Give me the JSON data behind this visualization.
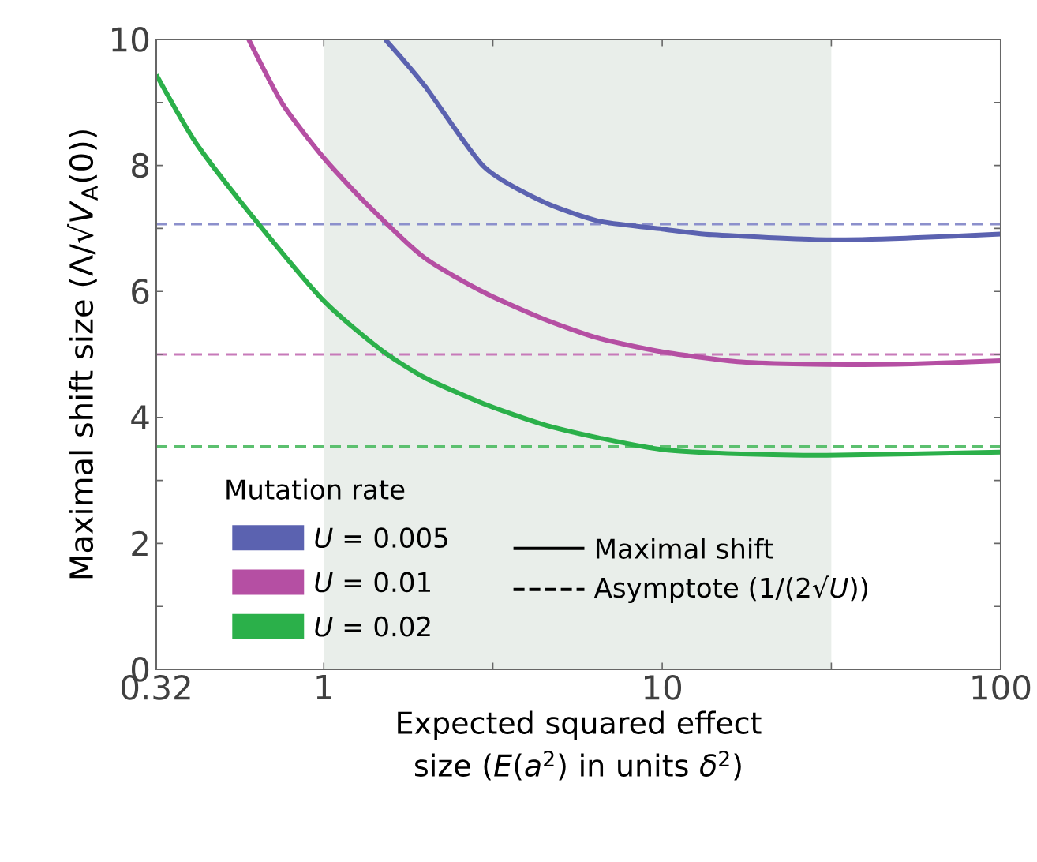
{
  "chart_data": {
    "type": "line",
    "xlabel": "Expected squared effect size (*E*(*a*$^{2}$) in units *δ*$^{2}$)",
    "ylabel": "Maximal shift size (Λ/√*V*$_{A}$(0))",
    "legend_title": "Mutation rate",
    "log": "x",
    "xlim": [
      0.32,
      100
    ],
    "ylim": [
      0,
      10
    ],
    "xticks": [
      0.32,
      1,
      {
        "value": 3.16,
        "label": null
      },
      10,
      {
        "value": 31.6,
        "label": null
      },
      100
    ],
    "yticks": [
      0,
      {
        "value": 1,
        "label": null
      },
      2,
      {
        "value": 3,
        "label": null
      },
      4,
      {
        "value": 5,
        "label": null
      },
      6,
      {
        "value": 7,
        "label": null
      },
      8,
      {
        "value": 9,
        "label": null
      },
      10
    ],
    "series": [
      {
        "name": "*U* = 0.005",
        "color": "#5b62b0",
        "x": [
          1.52,
          1.99,
          2.96,
          4.38,
          6.45,
          10,
          14.1,
          30.6,
          54.9,
          100
        ],
        "values": [
          10,
          9.26,
          7.99,
          7.44,
          7.12,
          6.99,
          6.9,
          6.82,
          6.85,
          6.91
        ]
      },
      {
        "name": "*U* = 0.01",
        "color": "#b54fa3",
        "x": [
          0.6,
          0.755,
          1,
          1.36,
          1.99,
          2.96,
          4.38,
          6.45,
          10,
          17.1,
          30.6,
          54.9,
          100
        ],
        "values": [
          10,
          8.98,
          8.12,
          7.35,
          6.53,
          5.99,
          5.58,
          5.26,
          5.04,
          4.88,
          4.84,
          4.85,
          4.9
        ]
      },
      {
        "name": "*U* = 0.02",
        "color": "#2bb04a",
        "x": [
          0.32,
          0.42,
          0.62,
          1,
          1.47,
          1.99,
          2.96,
          4.38,
          6.45,
          10,
          17.1,
          30.6,
          100
        ],
        "values": [
          9.44,
          8.35,
          7.17,
          5.85,
          5.08,
          4.63,
          4.22,
          3.9,
          3.68,
          3.49,
          3.42,
          3.4,
          3.45
        ]
      }
    ],
    "line_style": "solid",
    "marker": "none",
    "grid": false,
    "legend": "bottom left",
    "ref_lines": [
      {
        "axis": "y",
        "value": 7.07,
        "color": "#8c90cc",
        "line_style": "dashed"
      },
      {
        "axis": "y",
        "value": 5,
        "color": "#c77ab9",
        "line_style": "dashed"
      },
      {
        "axis": "y",
        "value": 3.54,
        "color": "#5cc06f",
        "line_style": "dashed"
      }
    ],
    "bands": [
      {
        "axis": "x",
        "from": 1,
        "to": 31.6,
        "color": "#e9eeea"
      }
    ],
    "annotations": [
      "Maximal shift",
      "Asymptote (1/(2√*U*))"
    ]
  }
}
